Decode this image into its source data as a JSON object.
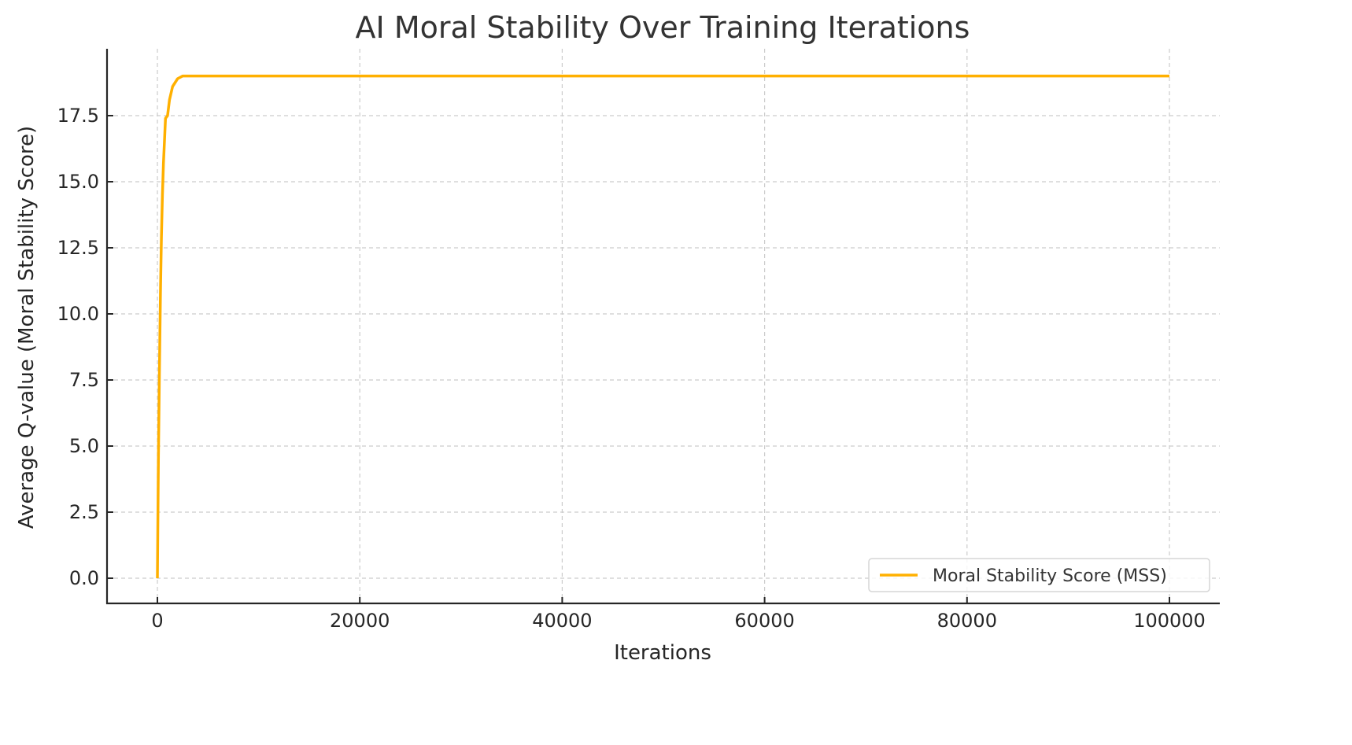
{
  "chart_data": {
    "type": "line",
    "title": "AI Moral Stability Over Training Iterations",
    "xlabel": "Iterations",
    "ylabel": "Average Q-value (Moral Stability Score)",
    "xlim": [
      -5000,
      105000
    ],
    "ylim": [
      -0.9,
      19.9
    ],
    "xticks": [
      0,
      20000,
      40000,
      60000,
      80000,
      100000
    ],
    "xtick_labels": [
      "0",
      "20000",
      "40000",
      "60000",
      "80000",
      "100000"
    ],
    "yticks": [
      0.0,
      2.5,
      5.0,
      7.5,
      10.0,
      12.5,
      15.0,
      17.5
    ],
    "ytick_labels": [
      "0.0",
      "2.5",
      "5.0",
      "7.5",
      "10.0",
      "12.5",
      "15.0",
      "17.5"
    ],
    "grid": true,
    "legend_position": "lower right",
    "series": [
      {
        "name": "Moral Stability Score (MSS)",
        "color": "#FFB000",
        "x": [
          0,
          100,
          200,
          300,
          400,
          500,
          600,
          800,
          1000,
          1200,
          1500,
          2000,
          2500,
          3000,
          5000,
          10000,
          20000,
          40000,
          60000,
          80000,
          100000
        ],
        "y": [
          0.0,
          4.6,
          7.9,
          10.8,
          12.9,
          14.5,
          15.7,
          17.4,
          17.5,
          18.1,
          18.6,
          18.9,
          19.0,
          19.0,
          19.0,
          19.0,
          19.0,
          19.0,
          19.0,
          19.0,
          19.0
        ]
      }
    ]
  }
}
